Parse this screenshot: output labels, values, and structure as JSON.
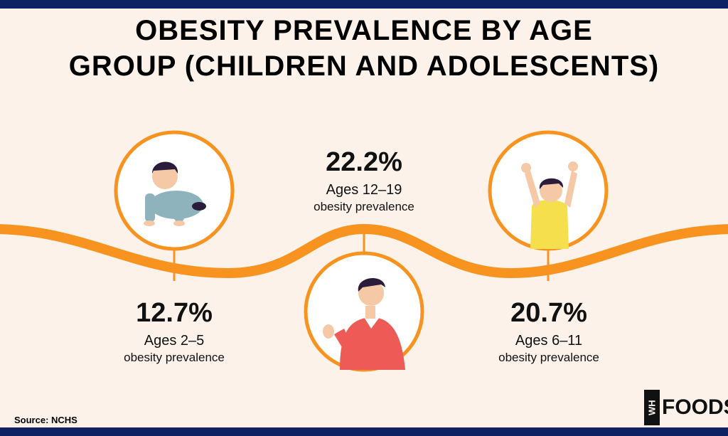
{
  "title": {
    "line1": "OBESITY PREVALENCE BY AGE",
    "line2": "GROUP (CHILDREN AND ADOLESCENTS)"
  },
  "stats": [
    {
      "value": "12.7%",
      "age": "Ages 2–5",
      "desc": "obesity prevalence"
    },
    {
      "value": "22.2%",
      "age": "Ages 12–19",
      "desc": "obesity prevalence"
    },
    {
      "value": "20.7%",
      "age": "Ages 6–11",
      "desc": "obesity prevalence"
    }
  ],
  "source": "Source: NCHS",
  "logo": {
    "mark": "WH",
    "word": "FOODS"
  },
  "colors": {
    "accent": "#f7931e",
    "background": "#fcf2ea",
    "navy": "#0d2163",
    "text": "#000000"
  },
  "icons": [
    "crawling-baby-illustration",
    "teen-boy-illustration",
    "child-arms-up-illustration"
  ]
}
